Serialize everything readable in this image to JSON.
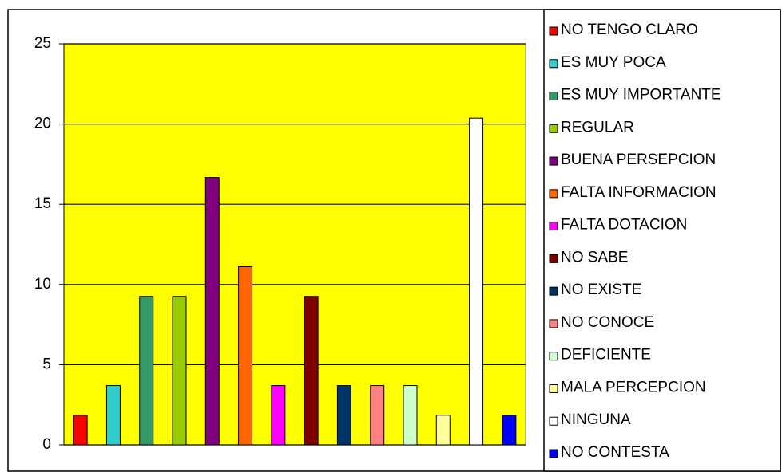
{
  "chart_data": {
    "type": "bar",
    "categories": [
      "NO TENGO CLARO",
      "ES MUY POCA",
      "ES MUY IMPORTANTE",
      "REGULAR",
      "BUENA PERSEPCION",
      "FALTA INFORMACION",
      "FALTA DOTACION",
      "NO SABE",
      "NO EXISTE",
      "NO CONOCE",
      "DEFICIENTE",
      "MALA PERCEPCION",
      "NINGUNA",
      "NO CONTESTA"
    ],
    "values": [
      1.85,
      3.7,
      9.26,
      9.26,
      16.67,
      11.11,
      3.7,
      9.26,
      3.7,
      3.7,
      3.7,
      1.85,
      20.37,
      1.85
    ],
    "colors": [
      "#ff0000",
      "#33cccc",
      "#339966",
      "#99cc00",
      "#800080",
      "#ff6600",
      "#ff00ff",
      "#800000",
      "#003366",
      "#ff8080",
      "#ccffcc",
      "#ffff99",
      "#ffffff",
      "#0000ff"
    ],
    "ylim": [
      0,
      25
    ],
    "yticks": [
      0,
      5,
      10,
      15,
      20,
      25
    ],
    "grid": true,
    "plot_background": "#ffff00",
    "legend": "right"
  }
}
